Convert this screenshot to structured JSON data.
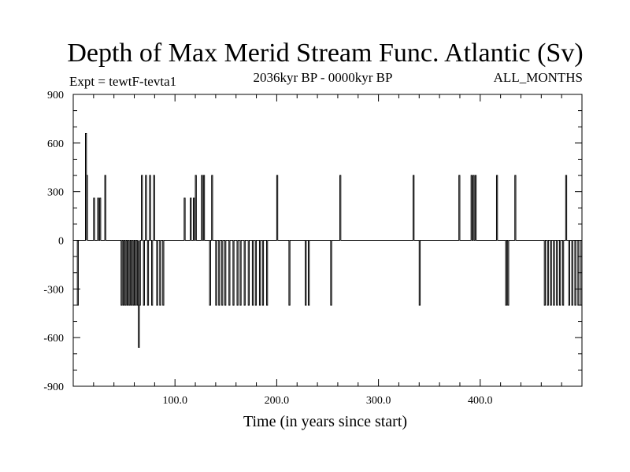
{
  "chart_data": {
    "type": "line",
    "title": "Depth of Max Merid Stream Func. Atlantic (Sv)",
    "left_label": "Expt = tewtF-tevta1",
    "center_label": "2036kyr BP - 0000kyr BP",
    "right_label": "ALL_MONTHS",
    "xlabel": "Time (in years since start)",
    "ylabel": "",
    "xlim": [
      0,
      500
    ],
    "ylim": [
      -900,
      900
    ],
    "x_ticks": [
      100,
      200,
      300,
      400
    ],
    "x_tick_labels": [
      "100.0",
      "200.0",
      "300.0",
      "400.0"
    ],
    "y_ticks": [
      900,
      600,
      300,
      0,
      -300,
      -600,
      -900
    ],
    "y_tick_labels": [
      "900",
      "600",
      "300",
      "0",
      "-300",
      "-600",
      "-900"
    ],
    "grid": false,
    "series": [
      {
        "name": "Depth of Max Merid Stream Func.",
        "pulses": [
          {
            "x": 4,
            "w": 1,
            "v": -400
          },
          {
            "x": 12,
            "w": 1,
            "v": 660
          },
          {
            "x": 13,
            "w": 1,
            "v": 400
          },
          {
            "x": 20,
            "w": 1,
            "v": 260
          },
          {
            "x": 24,
            "w": 1,
            "v": 260
          },
          {
            "x": 26,
            "w": 1,
            "v": 260
          },
          {
            "x": 31,
            "w": 1,
            "v": 400
          },
          {
            "x": 47,
            "w": 1,
            "v": -400
          },
          {
            "x": 49,
            "w": 1,
            "v": -400
          },
          {
            "x": 51,
            "w": 1,
            "v": -400
          },
          {
            "x": 53,
            "w": 1,
            "v": -400
          },
          {
            "x": 55,
            "w": 1,
            "v": -400
          },
          {
            "x": 57,
            "w": 1,
            "v": -400
          },
          {
            "x": 59,
            "w": 1,
            "v": -400
          },
          {
            "x": 61,
            "w": 1,
            "v": -400
          },
          {
            "x": 63,
            "w": 1,
            "v": -400
          },
          {
            "x": 64,
            "w": 1,
            "v": -660
          },
          {
            "x": 65,
            "w": 1,
            "v": -400
          },
          {
            "x": 67,
            "w": 1,
            "v": 400
          },
          {
            "x": 69,
            "w": 1,
            "v": -400
          },
          {
            "x": 71,
            "w": 1,
            "v": 400
          },
          {
            "x": 73,
            "w": 1,
            "v": -400
          },
          {
            "x": 75,
            "w": 1,
            "v": 400
          },
          {
            "x": 77,
            "w": 1,
            "v": -400
          },
          {
            "x": 79,
            "w": 1,
            "v": 400
          },
          {
            "x": 82,
            "w": 1,
            "v": -400
          },
          {
            "x": 85,
            "w": 1,
            "v": -400
          },
          {
            "x": 88,
            "w": 1,
            "v": -400
          },
          {
            "x": 109,
            "w": 1,
            "v": 260
          },
          {
            "x": 115,
            "w": 1,
            "v": 260
          },
          {
            "x": 118,
            "w": 1,
            "v": 260
          },
          {
            "x": 120,
            "w": 1,
            "v": 400
          },
          {
            "x": 126,
            "w": 1,
            "v": 400
          },
          {
            "x": 128,
            "w": 1,
            "v": 400
          },
          {
            "x": 134,
            "w": 1,
            "v": -400
          },
          {
            "x": 136,
            "w": 1,
            "v": 400
          },
          {
            "x": 140,
            "w": 1,
            "v": -400
          },
          {
            "x": 143,
            "w": 1,
            "v": -400
          },
          {
            "x": 146,
            "w": 1,
            "v": -400
          },
          {
            "x": 149,
            "w": 1,
            "v": -400
          },
          {
            "x": 153,
            "w": 1,
            "v": -400
          },
          {
            "x": 157,
            "w": 1,
            "v": -400
          },
          {
            "x": 161,
            "w": 1,
            "v": -400
          },
          {
            "x": 164,
            "w": 1,
            "v": -400
          },
          {
            "x": 168,
            "w": 1,
            "v": -400
          },
          {
            "x": 172,
            "w": 1,
            "v": -400
          },
          {
            "x": 176,
            "w": 1,
            "v": -400
          },
          {
            "x": 179,
            "w": 1,
            "v": -400
          },
          {
            "x": 183,
            "w": 1,
            "v": -400
          },
          {
            "x": 186,
            "w": 1,
            "v": -400
          },
          {
            "x": 190,
            "w": 1,
            "v": -400
          },
          {
            "x": 200,
            "w": 1,
            "v": 400
          },
          {
            "x": 212,
            "w": 1,
            "v": -400
          },
          {
            "x": 228,
            "w": 1,
            "v": -400
          },
          {
            "x": 231,
            "w": 1,
            "v": -400
          },
          {
            "x": 253,
            "w": 1,
            "v": -400
          },
          {
            "x": 262,
            "w": 1,
            "v": 400
          },
          {
            "x": 334,
            "w": 1,
            "v": 400
          },
          {
            "x": 340,
            "w": 1,
            "v": -400
          },
          {
            "x": 379,
            "w": 1,
            "v": 400
          },
          {
            "x": 391,
            "w": 1,
            "v": 400
          },
          {
            "x": 393,
            "w": 1,
            "v": 400
          },
          {
            "x": 395,
            "w": 1,
            "v": 400
          },
          {
            "x": 416,
            "w": 1,
            "v": 400
          },
          {
            "x": 425,
            "w": 1,
            "v": -400
          },
          {
            "x": 427,
            "w": 1,
            "v": -400
          },
          {
            "x": 434,
            "w": 1,
            "v": 400
          },
          {
            "x": 463,
            "w": 1,
            "v": -400
          },
          {
            "x": 466,
            "w": 1,
            "v": -400
          },
          {
            "x": 469,
            "w": 1,
            "v": -400
          },
          {
            "x": 472,
            "w": 1,
            "v": -400
          },
          {
            "x": 475,
            "w": 1,
            "v": -400
          },
          {
            "x": 478,
            "w": 1,
            "v": -400
          },
          {
            "x": 481,
            "w": 1,
            "v": -400
          },
          {
            "x": 484,
            "w": 1,
            "v": 400
          },
          {
            "x": 487,
            "w": 1,
            "v": -400
          },
          {
            "x": 490,
            "w": 1,
            "v": -400
          },
          {
            "x": 493,
            "w": 1,
            "v": -400
          },
          {
            "x": 496,
            "w": 1,
            "v": -400
          },
          {
            "x": 499,
            "w": 1,
            "v": -400
          }
        ]
      }
    ]
  }
}
